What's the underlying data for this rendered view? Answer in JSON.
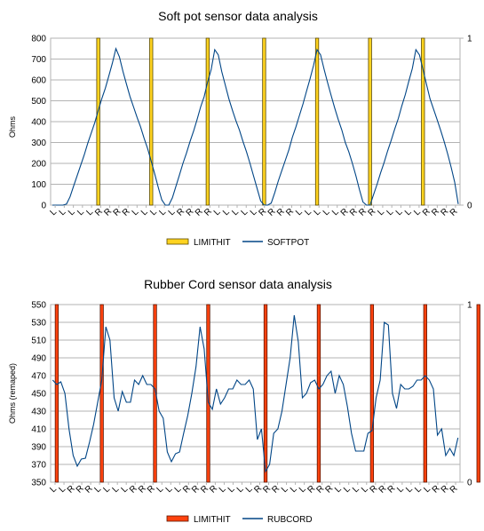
{
  "chart_data": [
    {
      "type": "bar+line",
      "title": "Soft pot sensor data analysis",
      "ylabel": "Ohms",
      "ylim": [
        0,
        800
      ],
      "yticks": [
        "0",
        "100",
        "200",
        "300",
        "400",
        "500",
        "600",
        "700",
        "800"
      ],
      "y2lim": [
        0,
        1
      ],
      "y2ticks": [
        "0",
        "1"
      ],
      "grid": true,
      "legend_position": "bottom",
      "colors": {
        "limit": "#ffd320",
        "limit_edge": "#5a4a00",
        "line": "#004586"
      },
      "series": [
        {
          "name": "LIMITHIT",
          "kind": "bar",
          "axis": "secondary",
          "values": [
            0,
            0,
            0,
            0,
            0,
            0,
            0,
            0,
            0,
            0,
            0,
            0,
            0,
            1,
            0,
            0,
            0,
            0,
            0,
            0,
            0,
            0,
            0,
            0,
            0,
            0,
            0,
            0,
            1,
            0,
            0,
            0,
            0,
            0,
            0,
            0,
            0,
            0,
            0,
            0,
            0,
            0,
            0,
            0,
            1,
            0,
            0,
            0,
            0,
            0,
            0,
            0,
            0,
            0,
            0,
            0,
            0,
            0,
            0,
            0,
            1,
            0,
            0,
            0,
            0,
            0,
            0,
            0,
            0,
            0,
            0,
            0,
            0,
            0,
            0,
            1,
            0,
            0,
            0,
            0,
            0,
            0,
            0,
            0,
            0,
            0,
            0,
            0,
            0,
            0,
            1,
            0,
            0,
            0,
            0,
            0,
            0,
            0,
            0,
            0,
            0,
            0,
            0,
            0,
            0,
            1,
            0,
            0,
            0,
            0,
            0,
            0,
            0,
            0,
            0,
            0,
            0,
            0,
            0
          ]
        },
        {
          "name": "SOFTPOT",
          "kind": "line",
          "axis": "primary",
          "values": [
            0,
            0,
            0,
            0,
            5,
            40,
            90,
            140,
            190,
            240,
            295,
            345,
            395,
            455,
            510,
            560,
            620,
            680,
            750,
            710,
            640,
            580,
            520,
            470,
            420,
            375,
            320,
            270,
            210,
            150,
            85,
            25,
            0,
            0,
            35,
            90,
            145,
            200,
            250,
            305,
            355,
            410,
            470,
            520,
            590,
            650,
            745,
            720,
            640,
            575,
            510,
            455,
            405,
            360,
            305,
            255,
            200,
            140,
            80,
            20,
            0,
            0,
            10,
            60,
            115,
            165,
            215,
            265,
            325,
            375,
            430,
            485,
            545,
            605,
            670,
            745,
            720,
            650,
            585,
            525,
            465,
            410,
            360,
            300,
            255,
            200,
            140,
            75,
            15,
            0,
            0,
            50,
            100,
            155,
            205,
            260,
            310,
            365,
            415,
            475,
            530,
            595,
            655,
            745,
            720,
            650,
            580,
            510,
            460,
            410,
            360,
            305,
            245,
            180,
            110,
            5
          ]
        }
      ],
      "x_tick_labels": [
        "L",
        "L",
        "L",
        "L",
        "L",
        "R",
        "R",
        "R",
        "R",
        "L",
        "L",
        "L",
        "L",
        "L",
        "R",
        "R",
        "R",
        "R",
        "L",
        "L",
        "L",
        "L",
        "L",
        "R",
        "R",
        "R",
        "R",
        "L",
        "L",
        "L",
        "L",
        "L",
        "R",
        "R",
        "R",
        "R",
        "L",
        "L",
        "L",
        "L",
        "L",
        "R",
        "R",
        "R",
        "R"
      ]
    },
    {
      "type": "bar+line",
      "title": "Rubber Cord sensor data analysis",
      "ylabel": "Ohms (remaped)",
      "ylim": [
        350,
        550
      ],
      "yticks": [
        "350",
        "370",
        "390",
        "410",
        "430",
        "450",
        "470",
        "490",
        "510",
        "530",
        "550"
      ],
      "y2lim": [
        0,
        1
      ],
      "y2ticks": [
        "0",
        "1"
      ],
      "grid": true,
      "legend_position": "bottom",
      "colors": {
        "limit": "#ff420e",
        "limit_edge": "#5a1400",
        "line": "#004586"
      },
      "series": [
        {
          "name": "LIMITHIT",
          "kind": "bar",
          "axis": "secondary",
          "values": [
            0,
            1,
            0,
            0,
            0,
            0,
            0,
            0,
            0,
            0,
            0,
            0,
            1,
            0,
            0,
            0,
            0,
            0,
            0,
            0,
            0,
            0,
            0,
            0,
            0,
            1,
            0,
            0,
            0,
            0,
            0,
            0,
            0,
            0,
            0,
            0,
            0,
            0,
            1,
            0,
            0,
            0,
            0,
            0,
            0,
            0,
            0,
            0,
            0,
            0,
            0,
            0,
            1,
            0,
            0,
            0,
            0,
            0,
            0,
            0,
            0,
            0,
            0,
            0,
            0,
            1,
            0,
            0,
            0,
            0,
            0,
            0,
            0,
            0,
            0,
            0,
            0,
            0,
            1,
            0,
            0,
            0,
            0,
            0,
            0,
            0,
            0,
            0,
            0,
            0,
            0,
            1,
            0,
            0,
            0,
            0,
            0,
            0,
            0,
            0,
            0,
            0,
            0,
            0,
            1,
            0,
            0,
            0,
            0,
            0,
            0,
            0,
            0,
            0,
            0,
            0,
            0
          ]
        },
        {
          "name": "RUBCORD",
          "kind": "line",
          "axis": "primary",
          "values": [
            465,
            460,
            463,
            450,
            410,
            380,
            368,
            376,
            377,
            395,
            415,
            440,
            465,
            525,
            510,
            445,
            430,
            452,
            440,
            440,
            465,
            460,
            470,
            460,
            460,
            455,
            430,
            422,
            384,
            373,
            382,
            384,
            405,
            425,
            450,
            480,
            525,
            500,
            440,
            432,
            455,
            438,
            445,
            455,
            455,
            465,
            460,
            460,
            465,
            455,
            398,
            410,
            362,
            370,
            405,
            410,
            430,
            460,
            490,
            538,
            508,
            445,
            450,
            462,
            465,
            455,
            460,
            470,
            475,
            450,
            470,
            460,
            435,
            405,
            385,
            385,
            385,
            405,
            408,
            445,
            465,
            530,
            527,
            450,
            433,
            460,
            455,
            455,
            458,
            465,
            465,
            470,
            465,
            455,
            403,
            410,
            380,
            388,
            380,
            400
          ]
        }
      ],
      "x_tick_labels": [
        "L",
        "L",
        "R",
        "R",
        "R",
        "L",
        "L",
        "L",
        "L",
        "R",
        "R",
        "R",
        "L",
        "L",
        "L",
        "R",
        "R",
        "R",
        "R",
        "L",
        "L",
        "L",
        "L",
        "R",
        "R",
        "R",
        "L",
        "L",
        "L",
        "R",
        "R",
        "R",
        "L",
        "L",
        "L",
        "L",
        "R",
        "R",
        "R",
        "L",
        "L",
        "L",
        "L",
        "R",
        "R",
        "R"
      ]
    }
  ]
}
